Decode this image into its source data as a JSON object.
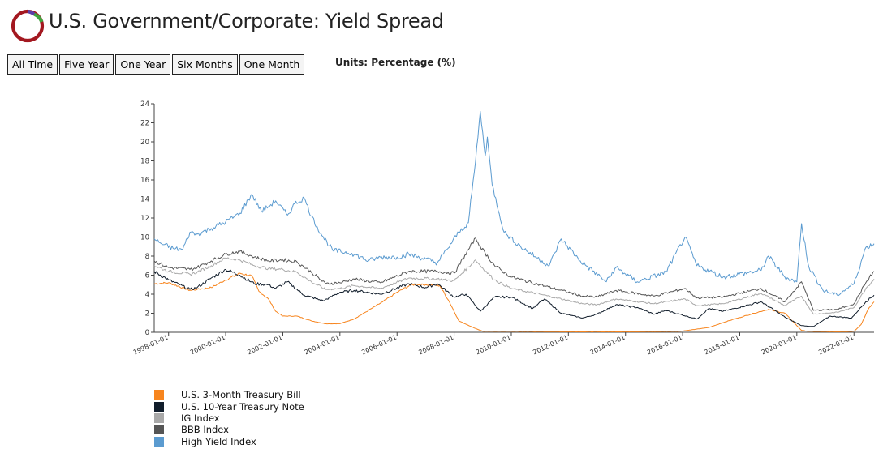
{
  "header": {
    "title": "U.S. Government/Corporate: Yield Spread",
    "units_label": "Units: Percentage (%)"
  },
  "range_buttons": [
    "All Time",
    "Five Year",
    "One Year",
    "Six Months",
    "One Month"
  ],
  "colors": {
    "logo_ring": "#a31820",
    "logo_accent_green": "#3fa53f",
    "logo_accent_purple": "#5b3fa8"
  },
  "chart_data": {
    "type": "line",
    "title": "",
    "xlabel": "",
    "ylabel": "",
    "xlim": [
      "1997-07-01",
      "2022-09-15"
    ],
    "ylim": [
      0,
      24
    ],
    "yticks": [
      0,
      2,
      4,
      6,
      8,
      10,
      12,
      14,
      16,
      18,
      20,
      22,
      24
    ],
    "xticks": [
      "1998-01-01",
      "2000-01-01",
      "2002-01-01",
      "2004-01-01",
      "2006-01-01",
      "2008-01-01",
      "2010-01-01",
      "2012-01-01",
      "2014-01-01",
      "2016-01-01",
      "2018-01-01",
      "2020-01-01",
      "2022-01-01"
    ],
    "grid": false,
    "legend_position": "bottom-left",
    "series": [
      {
        "name": "U.S. 3-Month Treasury Bill",
        "color": "#f7851e",
        "points": [
          [
            "1997-07-01",
            5.1
          ],
          [
            "1998-01-01",
            5.2
          ],
          [
            "1998-10-01",
            4.4
          ],
          [
            "1999-01-01",
            4.5
          ],
          [
            "1999-07-01",
            4.7
          ],
          [
            "2000-01-01",
            5.5
          ],
          [
            "2000-07-01",
            6.2
          ],
          [
            "2000-12-01",
            5.9
          ],
          [
            "2001-03-01",
            4.3
          ],
          [
            "2001-07-01",
            3.5
          ],
          [
            "2001-10-01",
            2.2
          ],
          [
            "2002-01-01",
            1.7
          ],
          [
            "2002-07-01",
            1.7
          ],
          [
            "2003-01-01",
            1.2
          ],
          [
            "2003-07-01",
            0.9
          ],
          [
            "2004-01-01",
            0.9
          ],
          [
            "2004-07-01",
            1.4
          ],
          [
            "2005-01-01",
            2.3
          ],
          [
            "2005-07-01",
            3.2
          ],
          [
            "2006-01-01",
            4.2
          ],
          [
            "2006-07-01",
            5.0
          ],
          [
            "2007-01-01",
            5.0
          ],
          [
            "2007-07-01",
            4.9
          ],
          [
            "2007-11-01",
            3.2
          ],
          [
            "2008-03-01",
            1.2
          ],
          [
            "2008-09-01",
            0.5
          ],
          [
            "2009-01-01",
            0.1
          ],
          [
            "2010-01-01",
            0.1
          ],
          [
            "2012-01-01",
            0.05
          ],
          [
            "2014-01-01",
            0.05
          ],
          [
            "2015-12-01",
            0.1
          ],
          [
            "2016-12-01",
            0.5
          ],
          [
            "2017-07-01",
            1.1
          ],
          [
            "2018-07-01",
            2.0
          ],
          [
            "2019-01-01",
            2.4
          ],
          [
            "2019-08-01",
            2.0
          ],
          [
            "2020-03-01",
            0.2
          ],
          [
            "2020-06-01",
            0.1
          ],
          [
            "2021-06-01",
            0.05
          ],
          [
            "2022-01-01",
            0.1
          ],
          [
            "2022-04-01",
            0.8
          ],
          [
            "2022-07-01",
            2.4
          ],
          [
            "2022-09-15",
            3.2
          ]
        ]
      },
      {
        "name": "U.S. 10-Year Treasury Note",
        "color": "#111d2b",
        "points": [
          [
            "1997-07-01",
            6.4
          ],
          [
            "1998-01-01",
            5.5
          ],
          [
            "1998-10-01",
            4.5
          ],
          [
            "1999-01-01",
            4.7
          ],
          [
            "1999-07-01",
            5.7
          ],
          [
            "2000-01-01",
            6.6
          ],
          [
            "2000-07-01",
            6.0
          ],
          [
            "2001-01-01",
            5.1
          ],
          [
            "2001-07-01",
            5.0
          ],
          [
            "2001-10-01",
            4.6
          ],
          [
            "2002-03-01",
            5.3
          ],
          [
            "2002-10-01",
            3.9
          ],
          [
            "2003-06-01",
            3.3
          ],
          [
            "2004-01-01",
            4.2
          ],
          [
            "2004-07-01",
            4.4
          ],
          [
            "2005-06-01",
            4.0
          ],
          [
            "2006-06-01",
            5.1
          ],
          [
            "2007-01-01",
            4.7
          ],
          [
            "2007-06-01",
            5.1
          ],
          [
            "2008-01-01",
            3.7
          ],
          [
            "2008-06-01",
            4.0
          ],
          [
            "2008-12-01",
            2.2
          ],
          [
            "2009-06-01",
            3.7
          ],
          [
            "2010-01-01",
            3.7
          ],
          [
            "2010-10-01",
            2.5
          ],
          [
            "2011-03-01",
            3.5
          ],
          [
            "2011-10-01",
            2.0
          ],
          [
            "2012-07-01",
            1.5
          ],
          [
            "2013-01-01",
            1.9
          ],
          [
            "2013-09-01",
            2.9
          ],
          [
            "2014-06-01",
            2.6
          ],
          [
            "2015-01-01",
            1.9
          ],
          [
            "2015-06-01",
            2.3
          ],
          [
            "2016-07-01",
            1.4
          ],
          [
            "2016-12-01",
            2.5
          ],
          [
            "2017-06-01",
            2.2
          ],
          [
            "2018-10-01",
            3.2
          ],
          [
            "2019-08-01",
            1.6
          ],
          [
            "2020-03-01",
            0.7
          ],
          [
            "2020-08-01",
            0.6
          ],
          [
            "2021-03-01",
            1.7
          ],
          [
            "2021-12-01",
            1.5
          ],
          [
            "2022-06-01",
            3.2
          ],
          [
            "2022-09-15",
            3.9
          ]
        ]
      },
      {
        "name": "IG Index",
        "color": "#a9a9a9",
        "points": [
          [
            "1997-07-01",
            7.0
          ],
          [
            "1998-01-01",
            6.4
          ],
          [
            "1998-10-01",
            6.1
          ],
          [
            "1999-01-01",
            6.3
          ],
          [
            "1999-07-01",
            7.0
          ],
          [
            "2000-01-01",
            7.8
          ],
          [
            "2000-07-01",
            7.6
          ],
          [
            "2001-01-01",
            7.0
          ],
          [
            "2001-07-01",
            6.7
          ],
          [
            "2002-01-01",
            6.6
          ],
          [
            "2002-07-01",
            6.3
          ],
          [
            "2003-01-01",
            5.3
          ],
          [
            "2003-07-01",
            4.5
          ],
          [
            "2004-01-01",
            4.6
          ],
          [
            "2004-07-01",
            4.9
          ],
          [
            "2005-06-01",
            4.6
          ],
          [
            "2006-06-01",
            5.7
          ],
          [
            "2007-06-01",
            5.6
          ],
          [
            "2008-01-01",
            5.4
          ],
          [
            "2008-10-01",
            7.6
          ],
          [
            "2008-12-01",
            7.0
          ],
          [
            "2009-06-01",
            5.5
          ],
          [
            "2010-01-01",
            4.6
          ],
          [
            "2011-01-01",
            4.0
          ],
          [
            "2012-07-01",
            3.0
          ],
          [
            "2013-01-01",
            2.9
          ],
          [
            "2013-09-01",
            3.5
          ],
          [
            "2015-01-01",
            3.0
          ],
          [
            "2016-02-01",
            3.5
          ],
          [
            "2016-07-01",
            2.8
          ],
          [
            "2017-06-01",
            3.0
          ],
          [
            "2018-10-01",
            4.1
          ],
          [
            "2019-08-01",
            2.8
          ],
          [
            "2020-03-01",
            3.8
          ],
          [
            "2020-08-01",
            1.9
          ],
          [
            "2021-06-01",
            2.1
          ],
          [
            "2022-01-01",
            2.6
          ],
          [
            "2022-06-01",
            4.6
          ],
          [
            "2022-09-15",
            5.6
          ]
        ]
      },
      {
        "name": "BBB Index",
        "color": "#555555",
        "points": [
          [
            "1997-07-01",
            7.5
          ],
          [
            "1998-01-01",
            6.8
          ],
          [
            "1998-10-01",
            6.6
          ],
          [
            "1999-01-01",
            6.8
          ],
          [
            "1999-07-01",
            7.5
          ],
          [
            "2000-01-01",
            8.2
          ],
          [
            "2000-07-01",
            8.5
          ],
          [
            "2001-01-01",
            7.9
          ],
          [
            "2001-07-01",
            7.5
          ],
          [
            "2002-01-01",
            7.6
          ],
          [
            "2002-07-01",
            7.4
          ],
          [
            "2003-01-01",
            6.3
          ],
          [
            "2003-07-01",
            5.1
          ],
          [
            "2004-01-01",
            5.2
          ],
          [
            "2004-07-01",
            5.6
          ],
          [
            "2005-06-01",
            5.2
          ],
          [
            "2006-06-01",
            6.4
          ],
          [
            "2007-06-01",
            6.4
          ],
          [
            "2008-01-01",
            6.2
          ],
          [
            "2008-10-01",
            9.9
          ],
          [
            "2008-12-01",
            9.0
          ],
          [
            "2009-06-01",
            7.0
          ],
          [
            "2010-01-01",
            5.8
          ],
          [
            "2011-01-01",
            5.0
          ],
          [
            "2012-07-01",
            3.8
          ],
          [
            "2013-01-01",
            3.7
          ],
          [
            "2013-09-01",
            4.4
          ],
          [
            "2015-01-01",
            3.8
          ],
          [
            "2016-02-01",
            4.6
          ],
          [
            "2016-07-01",
            3.6
          ],
          [
            "2017-06-01",
            3.7
          ],
          [
            "2018-10-01",
            4.6
          ],
          [
            "2019-08-01",
            3.2
          ],
          [
            "2020-03-01",
            5.3
          ],
          [
            "2020-08-01",
            2.3
          ],
          [
            "2021-06-01",
            2.4
          ],
          [
            "2022-01-01",
            3.0
          ],
          [
            "2022-06-01",
            5.2
          ],
          [
            "2022-09-15",
            6.4
          ]
        ]
      },
      {
        "name": "High Yield Index",
        "color": "#5b9bd0",
        "points": [
          [
            "1997-07-01",
            9.8
          ],
          [
            "1997-10-01",
            9.3
          ],
          [
            "1998-03-01",
            8.8
          ],
          [
            "1998-07-01",
            8.7
          ],
          [
            "1998-10-01",
            10.5
          ],
          [
            "1999-01-01",
            10.3
          ],
          [
            "1999-07-01",
            10.9
          ],
          [
            "2000-01-01",
            11.6
          ],
          [
            "2000-07-01",
            12.5
          ],
          [
            "2000-12-01",
            14.5
          ],
          [
            "2001-04-01",
            12.7
          ],
          [
            "2001-07-01",
            13.2
          ],
          [
            "2001-10-01",
            13.8
          ],
          [
            "2002-03-01",
            12.3
          ],
          [
            "2002-06-01",
            13.5
          ],
          [
            "2002-10-01",
            14.1
          ],
          [
            "2003-01-01",
            12.2
          ],
          [
            "2003-05-01",
            10.4
          ],
          [
            "2003-10-01",
            8.6
          ],
          [
            "2004-06-01",
            8.3
          ],
          [
            "2005-01-01",
            7.5
          ],
          [
            "2005-06-01",
            7.9
          ],
          [
            "2006-01-01",
            7.9
          ],
          [
            "2006-06-01",
            8.2
          ],
          [
            "2007-01-01",
            7.7
          ],
          [
            "2007-06-01",
            7.3
          ],
          [
            "2007-10-01",
            8.7
          ],
          [
            "2008-03-01",
            10.5
          ],
          [
            "2008-07-01",
            11.5
          ],
          [
            "2008-10-01",
            18.0
          ],
          [
            "2008-12-01",
            23.2
          ],
          [
            "2009-02-01",
            18.5
          ],
          [
            "2009-03-01",
            20.5
          ],
          [
            "2009-05-01",
            15.5
          ],
          [
            "2009-10-01",
            10.5
          ],
          [
            "2010-05-01",
            9.0
          ],
          [
            "2010-12-01",
            7.8
          ],
          [
            "2011-05-01",
            7.0
          ],
          [
            "2011-10-01",
            9.8
          ],
          [
            "2012-06-01",
            7.5
          ],
          [
            "2013-05-01",
            5.3
          ],
          [
            "2013-09-01",
            6.8
          ],
          [
            "2014-06-01",
            5.3
          ],
          [
            "2015-06-01",
            6.3
          ],
          [
            "2016-02-01",
            10.0
          ],
          [
            "2016-07-01",
            7.0
          ],
          [
            "2017-06-01",
            5.8
          ],
          [
            "2018-10-01",
            6.5
          ],
          [
            "2019-01-01",
            8.0
          ],
          [
            "2019-08-01",
            5.8
          ],
          [
            "2020-01-01",
            5.3
          ],
          [
            "2020-03-01",
            11.4
          ],
          [
            "2020-06-01",
            6.9
          ],
          [
            "2020-12-01",
            4.4
          ],
          [
            "2021-06-01",
            3.9
          ],
          [
            "2022-01-01",
            5.1
          ],
          [
            "2022-06-01",
            8.9
          ],
          [
            "2022-09-15",
            9.3
          ]
        ]
      }
    ]
  }
}
